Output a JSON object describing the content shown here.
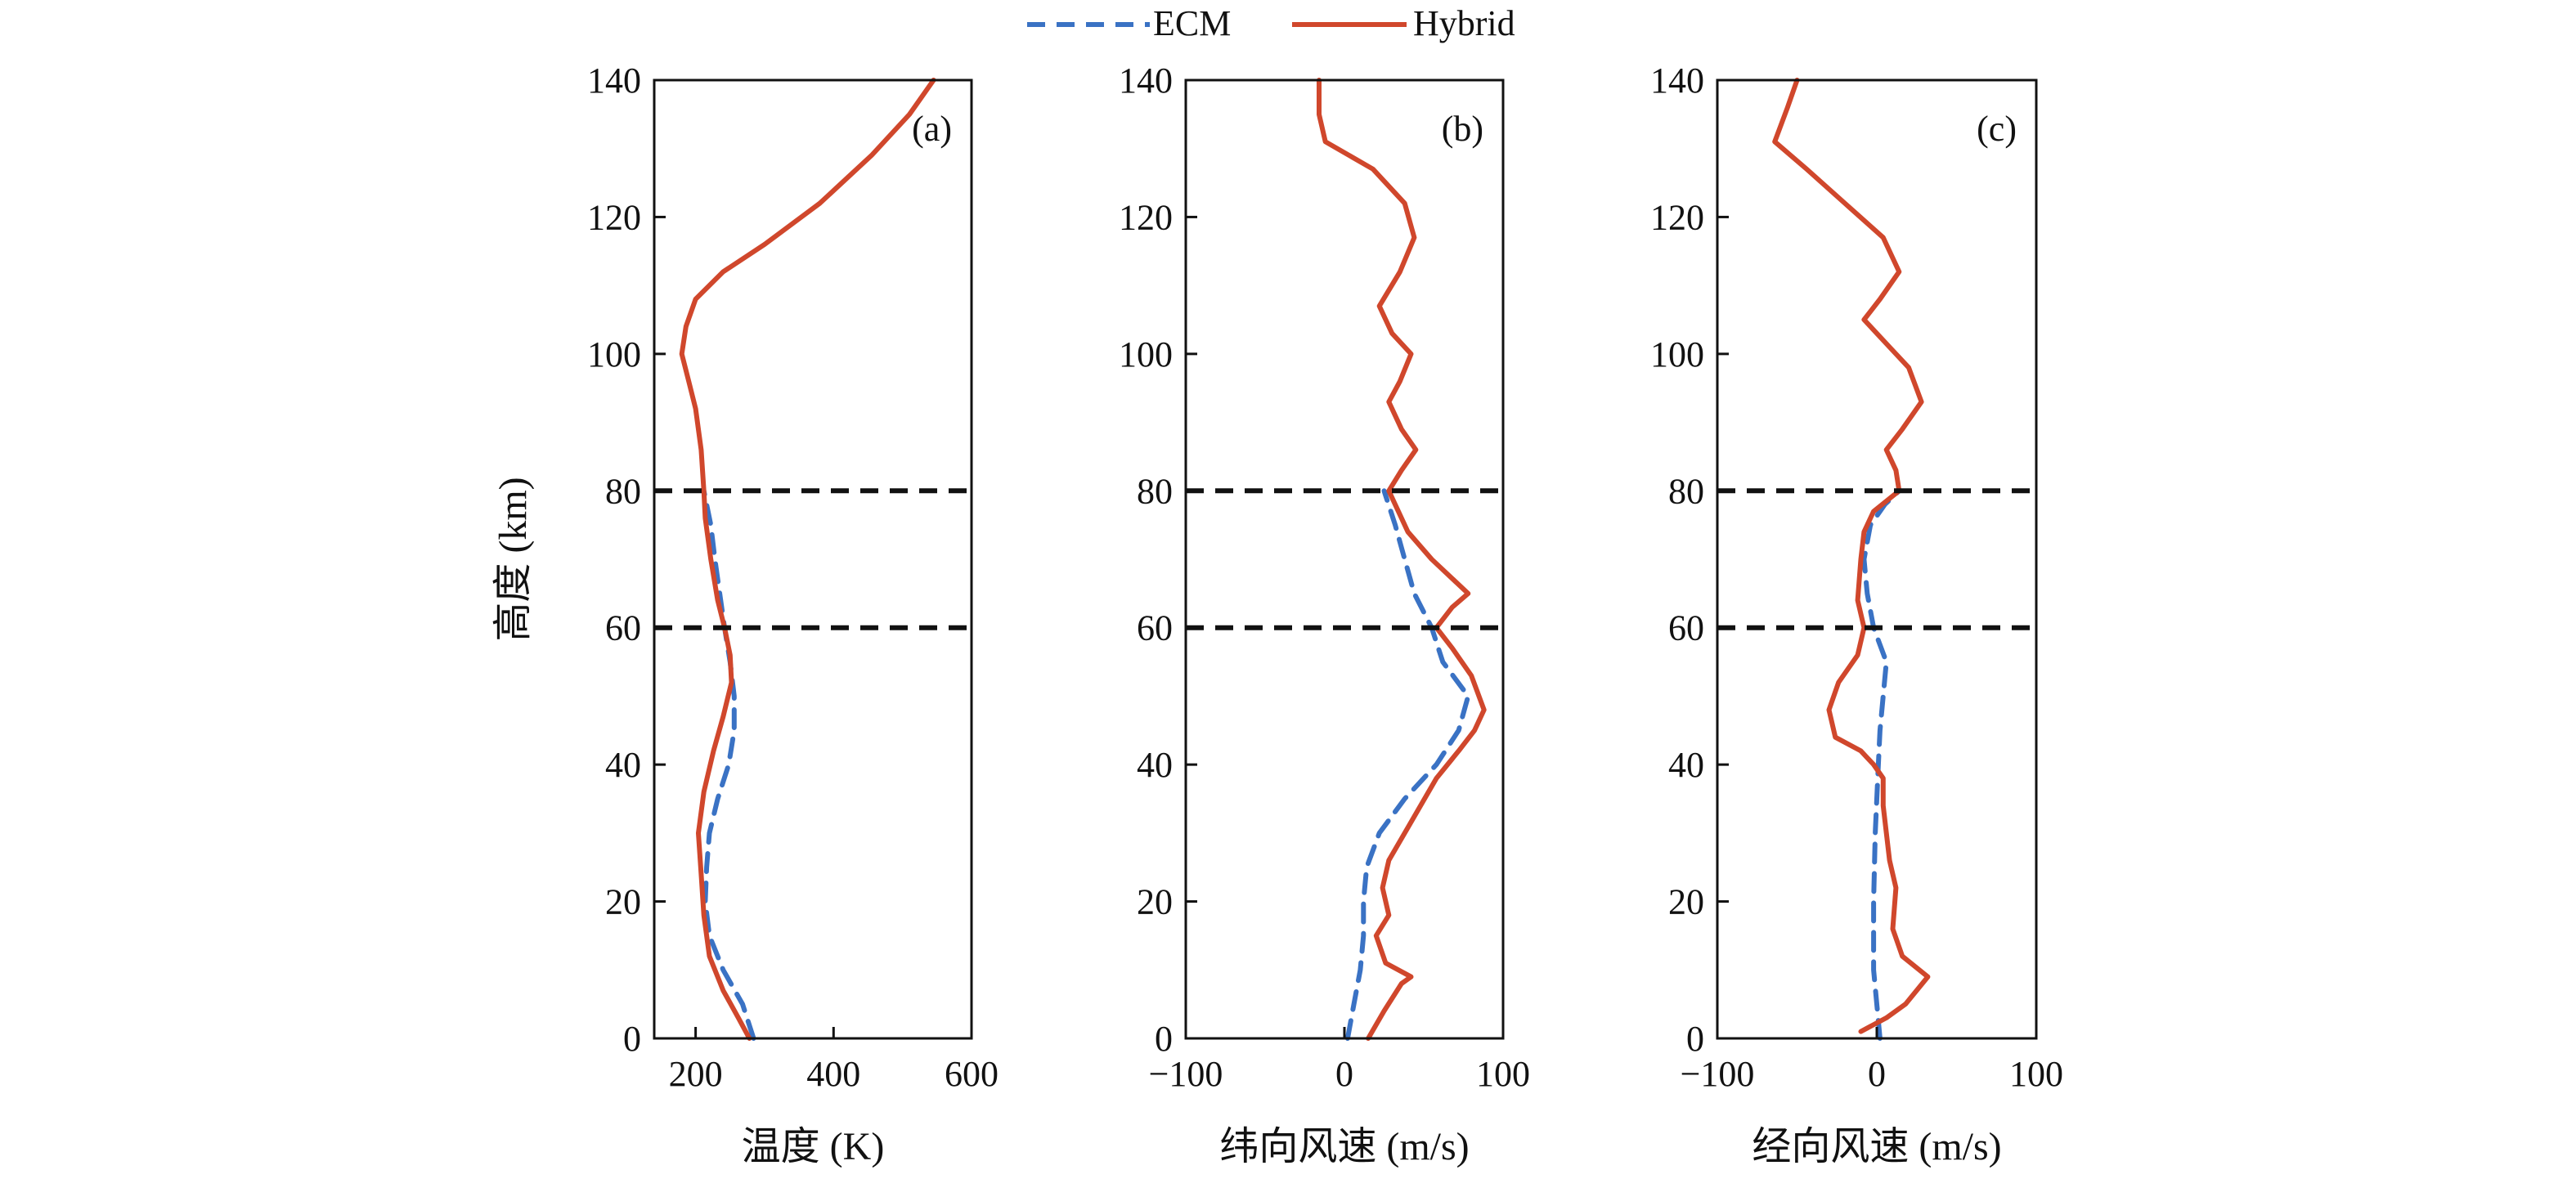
{
  "legend": {
    "position": "top-center",
    "items": [
      {
        "label": "ECM",
        "color": "#3a72c4",
        "style": "dashed"
      },
      {
        "label": "Hybrid",
        "color": "#d0472c",
        "style": "solid"
      }
    ]
  },
  "shared_ylabel": "高度 (km)",
  "reference_lines": {
    "y": [
      60,
      80
    ],
    "color": "#111111",
    "style": "dashed"
  },
  "chart_data": [
    {
      "type": "line",
      "panel_label": "(a)",
      "xlabel": "温度 (K)",
      "ylabel": "高度 (km)",
      "xlim": [
        140,
        600
      ],
      "ylim": [
        0,
        140
      ],
      "xticks": [
        200,
        400,
        600
      ],
      "yticks": [
        0,
        20,
        40,
        60,
        80,
        100,
        120,
        140
      ],
      "series": [
        {
          "name": "ECM",
          "points": [
            [
              284,
              0
            ],
            [
              268,
              5
            ],
            [
              240,
              10
            ],
            [
              220,
              15
            ],
            [
              214,
              20
            ],
            [
              216,
              25
            ],
            [
              220,
              30
            ],
            [
              232,
              35
            ],
            [
              248,
              40
            ],
            [
              256,
              45
            ],
            [
              256,
              50
            ],
            [
              250,
              55
            ],
            [
              242,
              60
            ],
            [
              235,
              65
            ],
            [
              228,
              70
            ],
            [
              222,
              75
            ],
            [
              212,
              80
            ]
          ]
        },
        {
          "name": "Hybrid",
          "points": [
            [
              278,
              0
            ],
            [
              262,
              3
            ],
            [
              240,
              7
            ],
            [
              220,
              12
            ],
            [
              212,
              18
            ],
            [
              208,
              24
            ],
            [
              204,
              30
            ],
            [
              212,
              36
            ],
            [
              226,
              42
            ],
            [
              240,
              47
            ],
            [
              252,
              52
            ],
            [
              250,
              56
            ],
            [
              242,
              60
            ],
            [
              232,
              64
            ],
            [
              222,
              70
            ],
            [
              214,
              76
            ],
            [
              212,
              80
            ],
            [
              208,
              86
            ],
            [
              200,
              92
            ],
            [
              190,
              96
            ],
            [
              180,
              100
            ],
            [
              186,
              104
            ],
            [
              200,
              108
            ],
            [
              240,
              112
            ],
            [
              300,
              116
            ],
            [
              380,
              122
            ],
            [
              455,
              129
            ],
            [
              510,
              135
            ],
            [
              545,
              140
            ]
          ]
        }
      ]
    },
    {
      "type": "line",
      "panel_label": "(b)",
      "xlabel": "纬向风速 (m/s)",
      "ylabel": "",
      "xlim": [
        -100,
        100
      ],
      "ylim": [
        0,
        140
      ],
      "xticks": [
        -100,
        0,
        100
      ],
      "yticks": [
        0,
        20,
        40,
        60,
        80,
        100,
        120,
        140
      ],
      "series": [
        {
          "name": "ECM",
          "points": [
            [
              2,
              0
            ],
            [
              6,
              5
            ],
            [
              10,
              10
            ],
            [
              12,
              15
            ],
            [
              12,
              20
            ],
            [
              14,
              25
            ],
            [
              22,
              30
            ],
            [
              38,
              35
            ],
            [
              58,
              40
            ],
            [
              72,
              45
            ],
            [
              78,
              50
            ],
            [
              62,
              55
            ],
            [
              55,
              60
            ],
            [
              44,
              65
            ],
            [
              38,
              70
            ],
            [
              32,
              75
            ],
            [
              25,
              80
            ]
          ]
        },
        {
          "name": "Hybrid",
          "points": [
            [
              15,
              0
            ],
            [
              25,
              4
            ],
            [
              36,
              8
            ],
            [
              42,
              9
            ],
            [
              26,
              11
            ],
            [
              20,
              15
            ],
            [
              28,
              18
            ],
            [
              24,
              22
            ],
            [
              28,
              26
            ],
            [
              38,
              30
            ],
            [
              48,
              34
            ],
            [
              58,
              38
            ],
            [
              72,
              42
            ],
            [
              82,
              45
            ],
            [
              88,
              48
            ],
            [
              80,
              53
            ],
            [
              68,
              57
            ],
            [
              58,
              60
            ],
            [
              68,
              63
            ],
            [
              78,
              65
            ],
            [
              55,
              70
            ],
            [
              40,
              74
            ],
            [
              28,
              80
            ],
            [
              36,
              83
            ],
            [
              45,
              86
            ],
            [
              36,
              89
            ],
            [
              28,
              93
            ],
            [
              35,
              96
            ],
            [
              42,
              100
            ],
            [
              30,
              103
            ],
            [
              22,
              107
            ],
            [
              35,
              112
            ],
            [
              44,
              117
            ],
            [
              38,
              122
            ],
            [
              18,
              127
            ],
            [
              -12,
              131
            ],
            [
              -16,
              135
            ],
            [
              -16,
              140
            ]
          ]
        }
      ]
    },
    {
      "type": "line",
      "panel_label": "(c)",
      "xlabel": "经向风速 (m/s)",
      "ylabel": "",
      "xlim": [
        -100,
        100
      ],
      "ylim": [
        0,
        140
      ],
      "xticks": [
        -100,
        0,
        100
      ],
      "yticks": [
        0,
        20,
        40,
        60,
        80,
        100,
        120,
        140
      ],
      "series": [
        {
          "name": "ECM",
          "points": [
            [
              2,
              0
            ],
            [
              0,
              5
            ],
            [
              -2,
              10
            ],
            [
              -2,
              20
            ],
            [
              -1,
              30
            ],
            [
              1,
              40
            ],
            [
              2,
              45
            ],
            [
              4,
              50
            ],
            [
              6,
              55
            ],
            [
              -2,
              60
            ],
            [
              -6,
              65
            ],
            [
              -8,
              70
            ],
            [
              -4,
              75
            ],
            [
              5,
              78
            ],
            [
              14,
              80
            ]
          ]
        },
        {
          "name": "Hybrid",
          "points": [
            [
              -10,
              1
            ],
            [
              6,
              3
            ],
            [
              18,
              5
            ],
            [
              32,
              9
            ],
            [
              16,
              12
            ],
            [
              10,
              16
            ],
            [
              12,
              22
            ],
            [
              8,
              26
            ],
            [
              6,
              30
            ],
            [
              4,
              34
            ],
            [
              4,
              38
            ],
            [
              -2,
              40
            ],
            [
              -10,
              42
            ],
            [
              -26,
              44
            ],
            [
              -30,
              48
            ],
            [
              -24,
              52
            ],
            [
              -12,
              56
            ],
            [
              -8,
              60
            ],
            [
              -12,
              64
            ],
            [
              -10,
              70
            ],
            [
              -8,
              74
            ],
            [
              -2,
              77
            ],
            [
              14,
              80
            ],
            [
              12,
              83
            ],
            [
              6,
              86
            ],
            [
              16,
              89
            ],
            [
              28,
              93
            ],
            [
              20,
              98
            ],
            [
              8,
              101
            ],
            [
              -8,
              105
            ],
            [
              2,
              108
            ],
            [
              14,
              112
            ],
            [
              4,
              117
            ],
            [
              -20,
              122
            ],
            [
              -44,
              127
            ],
            [
              -64,
              131
            ],
            [
              -56,
              136
            ],
            [
              -50,
              140
            ]
          ]
        }
      ]
    }
  ]
}
